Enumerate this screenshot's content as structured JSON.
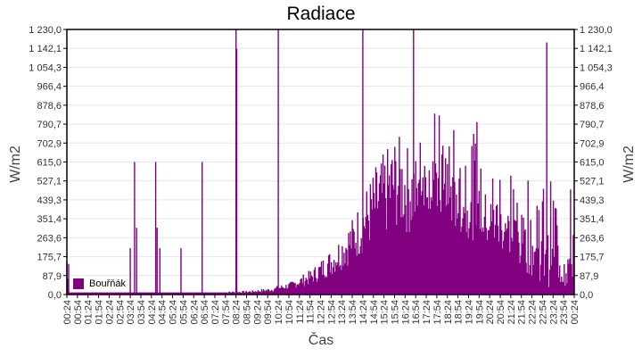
{
  "chart_data": {
    "type": "bar",
    "title": "Radiace",
    "xlabel": "Čas",
    "ylabel": "W/m2",
    "ylabel_right": "W/m2",
    "ylim": [
      0,
      1230
    ],
    "y_ticks": [
      "0,0",
      "87,9",
      "175,7",
      "263,6",
      "351,4",
      "439,3",
      "527,1",
      "615,0",
      "702,9",
      "790,7",
      "878,6",
      "966,4",
      "1 054,3",
      "1 142,1",
      "1 230,0"
    ],
    "x_ticks": [
      "00:24",
      "00:54",
      "01:24",
      "01:54",
      "02:24",
      "02:54",
      "03:24",
      "03:54",
      "04:24",
      "04:54",
      "05:24",
      "05:54",
      "06:24",
      "06:54",
      "07:24",
      "07:54",
      "08:24",
      "08:54",
      "09:24",
      "09:54",
      "10:24",
      "10:54",
      "11:24",
      "11:54",
      "12:24",
      "12:54",
      "13:24",
      "13:54",
      "14:24",
      "14:54",
      "15:24",
      "15:54",
      "16:24",
      "16:54",
      "17:24",
      "17:54",
      "18:24",
      "18:54",
      "19:24",
      "19:54",
      "20:24",
      "20:54",
      "21:24",
      "21:54",
      "22:24",
      "22:54",
      "23:24",
      "23:54",
      "00:24"
    ],
    "grid": true,
    "legend": {
      "position": "bottom-left inside",
      "entries": [
        "Bouřňák"
      ]
    },
    "series": [
      {
        "name": "Bouřňák",
        "color": "#800080",
        "baseline_profile_hourly_approx": [
          10,
          10,
          10,
          10,
          10,
          10,
          10,
          10,
          10,
          12,
          20,
          40,
          80,
          150,
          250,
          400,
          500,
          430,
          350,
          280,
          230,
          180,
          110,
          40,
          12
        ],
        "notable_spikes": [
          {
            "time": "03:24",
            "value": 215
          },
          {
            "time": "03:36",
            "value": 615
          },
          {
            "time": "03:42",
            "value": 310
          },
          {
            "time": "04:36",
            "value": 615
          },
          {
            "time": "04:40",
            "value": 310
          },
          {
            "time": "04:48",
            "value": 215
          },
          {
            "time": "05:48",
            "value": 215
          },
          {
            "time": "06:48",
            "value": 615
          },
          {
            "time": "08:24",
            "value": 1230
          },
          {
            "time": "08:26",
            "value": 1140
          },
          {
            "time": "10:24",
            "value": 1230
          },
          {
            "time": "14:24",
            "value": 1230
          },
          {
            "time": "16:48",
            "value": 1230
          },
          {
            "time": "19:48",
            "value": 800
          },
          {
            "time": "23:06",
            "value": 1170
          }
        ]
      }
    ]
  }
}
